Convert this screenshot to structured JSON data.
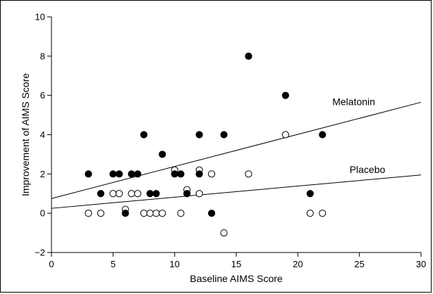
{
  "chart_data": {
    "type": "scatter",
    "title": "",
    "xlabel": "Baseline AIMS Score",
    "ylabel": "Improvement of AIMS Score",
    "xlim": [
      0,
      30
    ],
    "ylim": [
      -2,
      10
    ],
    "xticks": [
      0,
      5,
      10,
      15,
      20,
      25,
      30
    ],
    "yticks": [
      -2,
      0,
      2,
      4,
      6,
      8,
      10
    ],
    "xtick_labels": [
      "0",
      "5",
      "10",
      "15",
      "20",
      "25",
      "30"
    ],
    "ytick_labels": [
      "−2",
      "0",
      "2",
      "4",
      "6",
      "8",
      "10"
    ],
    "grid": false,
    "series": [
      {
        "name": "Melatonin",
        "marker": "filled-circle",
        "color": "#000000",
        "points": [
          [
            3,
            2
          ],
          [
            4,
            1
          ],
          [
            5,
            2
          ],
          [
            5.5,
            2
          ],
          [
            6,
            0
          ],
          [
            6.5,
            2
          ],
          [
            7,
            2
          ],
          [
            7.5,
            4
          ],
          [
            8,
            1
          ],
          [
            8.5,
            1
          ],
          [
            9,
            3
          ],
          [
            10,
            2
          ],
          [
            10.5,
            2
          ],
          [
            11,
            1
          ],
          [
            12,
            2
          ],
          [
            12,
            4
          ],
          [
            13,
            0
          ],
          [
            14,
            4
          ],
          [
            16,
            8
          ],
          [
            19,
            6
          ],
          [
            21,
            1
          ],
          [
            22,
            4
          ]
        ],
        "fit_line": {
          "x": [
            0,
            30
          ],
          "y": [
            0.75,
            5.65
          ]
        }
      },
      {
        "name": "Placebo",
        "marker": "open-circle",
        "color": "#000000",
        "points": [
          [
            3,
            0
          ],
          [
            4,
            0
          ],
          [
            5,
            1
          ],
          [
            5.5,
            1
          ],
          [
            6,
            0.2
          ],
          [
            6.5,
            1
          ],
          [
            7,
            1
          ],
          [
            7.5,
            0
          ],
          [
            8,
            0
          ],
          [
            8.5,
            0
          ],
          [
            9,
            0
          ],
          [
            10,
            2.2
          ],
          [
            10.5,
            0
          ],
          [
            11,
            1.2
          ],
          [
            12,
            2.2
          ],
          [
            12,
            1
          ],
          [
            13,
            2
          ],
          [
            14,
            -1
          ],
          [
            16,
            2
          ],
          [
            19,
            4
          ],
          [
            21,
            0
          ],
          [
            22,
            0
          ]
        ],
        "fit_line": {
          "x": [
            0,
            30
          ],
          "y": [
            0.25,
            1.95
          ]
        }
      }
    ]
  }
}
